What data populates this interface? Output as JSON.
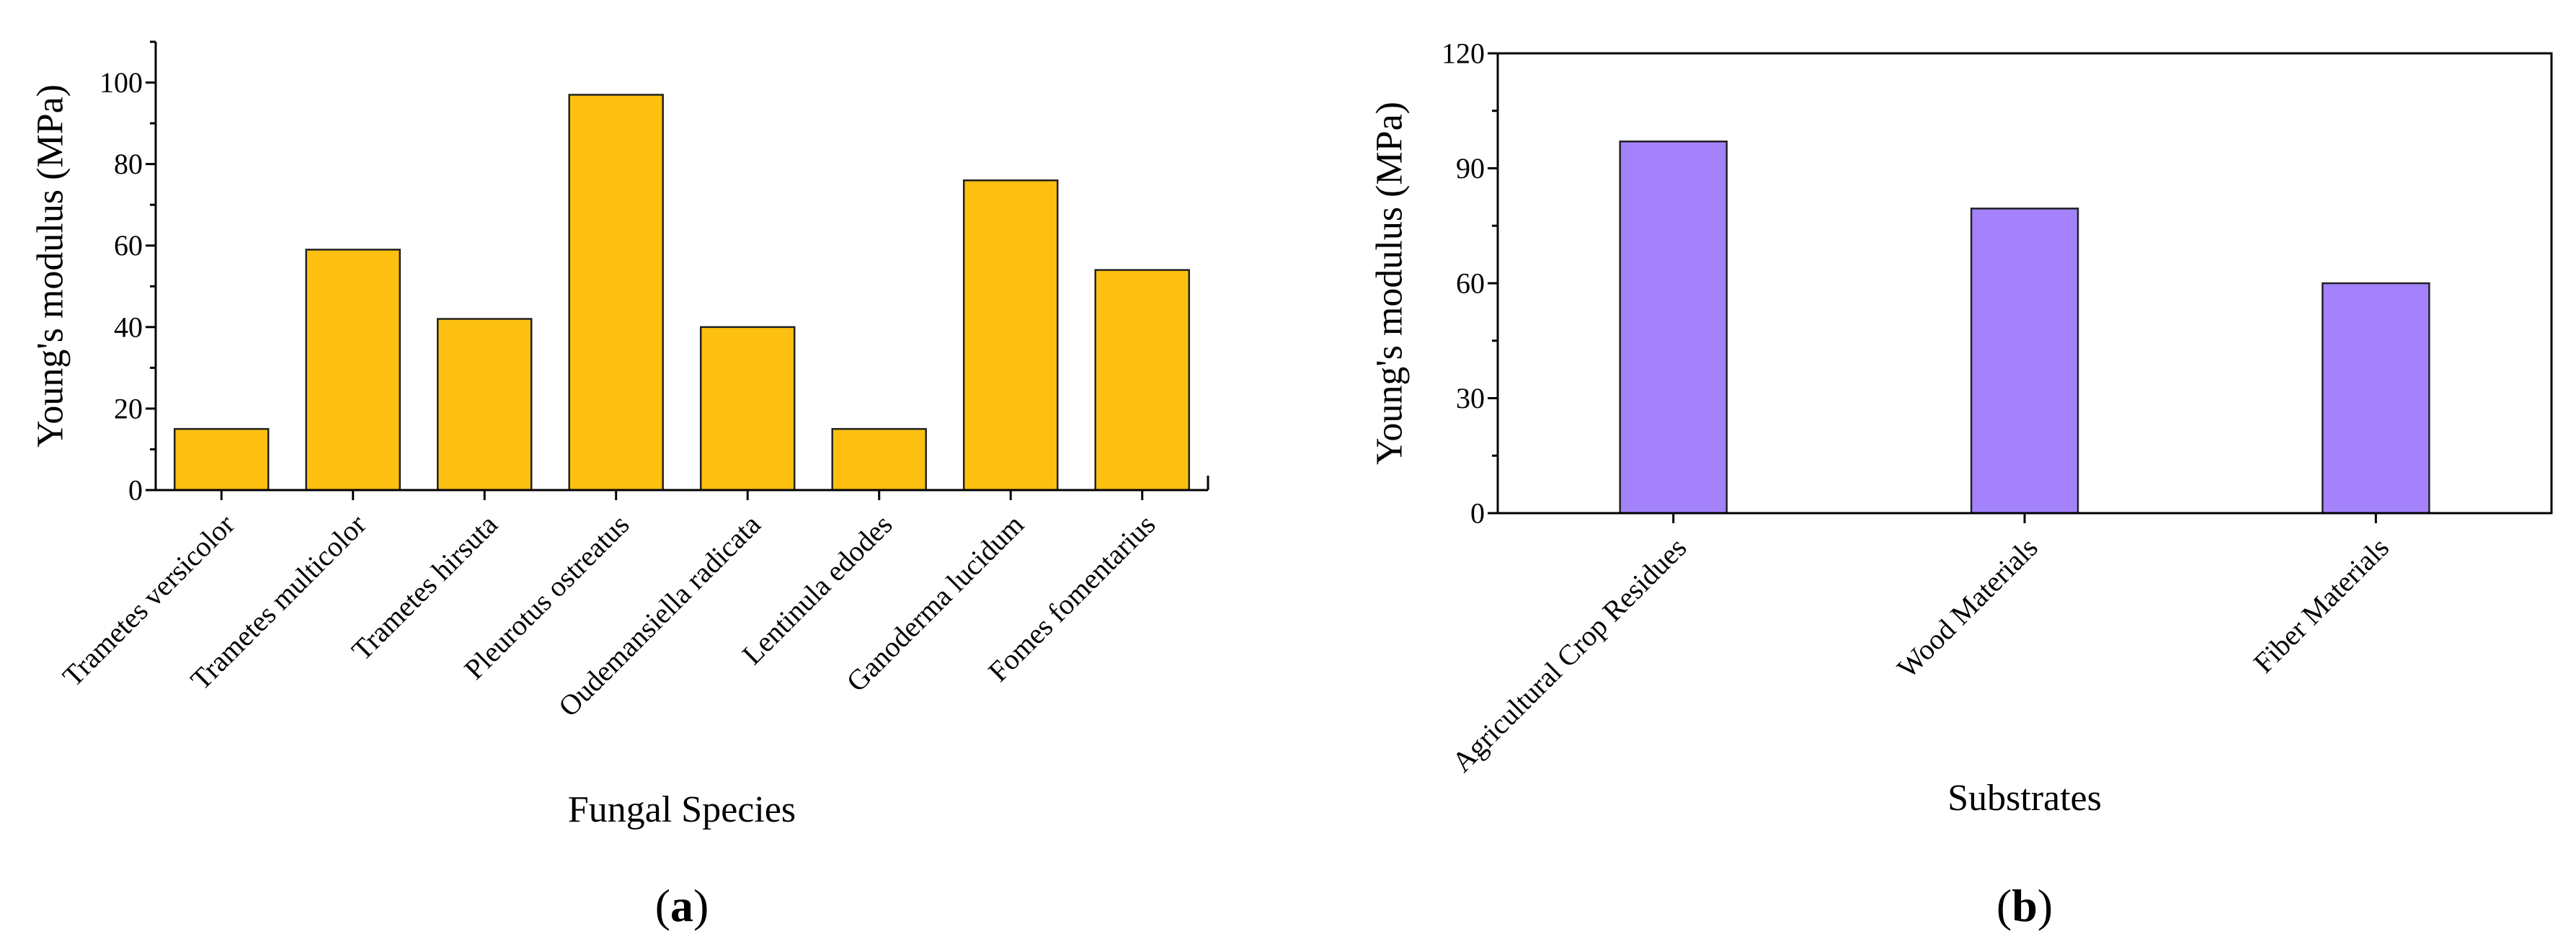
{
  "chart_data": [
    {
      "type": "bar",
      "panel": "a",
      "panel_label": {
        "open": "(",
        "letter": "a",
        "close": ")"
      },
      "title": "",
      "xlabel": "Fungal Species",
      "ylabel": "Young's modulus (MPa)",
      "categories": [
        "Trametes versicolor",
        "Trametes multicolor",
        "Trametes hirsuta",
        "Pleurotus ostreatus",
        "Oudemansiella radicata",
        "Lentinula edodes",
        "Ganoderma lucidum",
        "Fomes fomentarius"
      ],
      "values": [
        15,
        59,
        42,
        97,
        40,
        15,
        76,
        54
      ],
      "ylim": [
        0,
        110
      ],
      "yticks": [
        0,
        20,
        40,
        60,
        80,
        100
      ],
      "grid": false,
      "legend": "none",
      "bar_color": "#fdc010"
    },
    {
      "type": "bar",
      "panel": "b",
      "panel_label": {
        "open": "(",
        "letter": "b",
        "close": ")"
      },
      "title": "",
      "xlabel": "Substrates",
      "ylabel": "Young's modulus (MPa)",
      "categories": [
        "Agricultural Crop Residues",
        "Wood Materials",
        "Fiber Materials"
      ],
      "values": [
        97,
        79.5,
        60
      ],
      "ylim": [
        0,
        120
      ],
      "yticks": [
        0,
        30,
        60,
        90,
        120
      ],
      "grid": false,
      "legend": "none",
      "bar_color": "#a382fb"
    }
  ]
}
